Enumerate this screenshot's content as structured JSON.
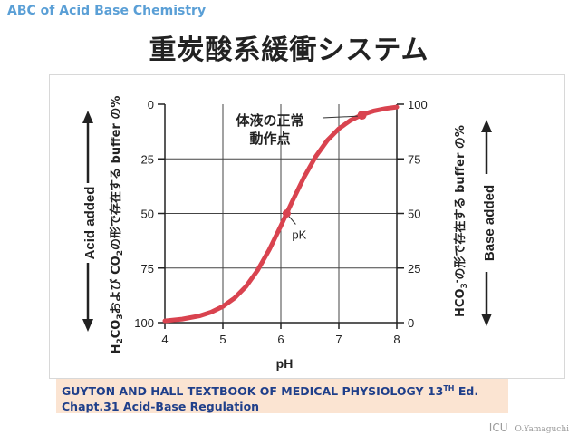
{
  "header": {
    "label": "ABC of Acid Base Chemistry"
  },
  "title": "重炭酸系緩衝システム",
  "figure": {
    "left_axis_label": "Acid added",
    "right_axis_label": "Base added",
    "left_axis_ticks": [
      "0",
      "25",
      "50",
      "75",
      "100"
    ],
    "right_axis_ticks": [
      "100",
      "75",
      "50",
      "25",
      "0"
    ],
    "x_ticks": [
      "4",
      "5",
      "6",
      "7",
      "8"
    ],
    "x_label": "pH",
    "left_side_caption": {
      "h": "H",
      "s1": "2",
      "co3": "CO",
      "s2": "3",
      "and_co": "および CO",
      "s3": "2",
      "rest": "の形で存在する buffer の%"
    },
    "right_side_caption": {
      "hco": "HCO",
      "s1": "3",
      "sup": "-",
      "rest": "の形で存在する buffer の%"
    },
    "annotation_normal_line1": "体液の正常",
    "annotation_normal_line2": "動作点",
    "annotation_pk": "pK"
  },
  "chart_data": {
    "type": "line",
    "xlabel": "pH",
    "xlim": [
      4,
      8
    ],
    "ylabel_left": "Acid added",
    "ylabel_right": "Base added",
    "ylim": [
      0,
      100
    ],
    "pK": 6.1,
    "x": [
      4.0,
      4.3,
      4.6,
      4.8,
      5.0,
      5.2,
      5.4,
      5.6,
      5.8,
      6.0,
      6.1,
      6.2,
      6.4,
      6.6,
      6.8,
      7.0,
      7.2,
      7.4,
      7.6,
      7.8,
      8.0
    ],
    "y": [
      0.8,
      1.6,
      3.1,
      4.8,
      7.4,
      11.2,
      16.6,
      24.0,
      33.4,
      44.3,
      50.0,
      55.7,
      66.6,
      76.0,
      83.4,
      88.8,
      92.6,
      95.2,
      96.9,
      98.0,
      98.7
    ],
    "points": [
      {
        "label": "pK",
        "x": 6.1,
        "y": 50
      },
      {
        "label": "体液の正常動作点",
        "x": 7.4,
        "y": 95
      }
    ],
    "line_color": "#d9434f"
  },
  "citation": {
    "line1_main": "GUYTON AND HALL TEXTBOOK OF MEDICAL PHYSIOLOGY 13",
    "line1_sup": "TH",
    "line1_end": " Ed.",
    "line2": "Chapt.31 Acid-Base Regulation"
  },
  "footer": {
    "icu": "ICU",
    "author": "O.Yamaguchi"
  }
}
